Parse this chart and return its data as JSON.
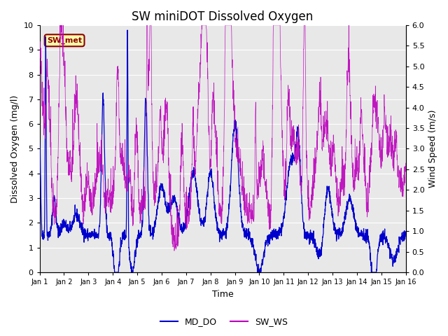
{
  "title": "SW miniDOT Dissolved Oxygen",
  "xlabel": "Time",
  "ylabel_left": "Dissolved Oxygen (mg/l)",
  "ylabel_right": "Wind Speed (m/s)",
  "ylim_left": [
    0.0,
    10.0
  ],
  "ylim_right": [
    0.0,
    6.0
  ],
  "yticks_left": [
    0.0,
    1.0,
    2.0,
    3.0,
    4.0,
    5.0,
    6.0,
    7.0,
    8.0,
    9.0,
    10.0
  ],
  "yticks_right": [
    0.0,
    0.5,
    1.0,
    1.5,
    2.0,
    2.5,
    3.0,
    3.5,
    4.0,
    4.5,
    5.0,
    5.5,
    6.0
  ],
  "xtick_labels": [
    "Jan 1",
    "Jan 2",
    "Jan 3",
    "Jan 4",
    "Jan 5",
    "Jan 6",
    "Jan 7",
    "Jan 8",
    "Jan 9",
    "Jan 10",
    "Jan 11",
    "Jan 12",
    "Jan 13",
    "Jan 14",
    "Jan 15",
    "Jan 16"
  ],
  "num_days": 15,
  "points_per_day": 144,
  "md_do_color": "#0000CC",
  "sw_ws_color": "#BB00BB",
  "legend_md_do": "MD_DO",
  "legend_sw_ws": "SW_WS",
  "annotation_text": "SW_met",
  "annotation_box_facecolor": "#FFFFAA",
  "annotation_box_edgecolor": "#8B0000",
  "annotation_text_color": "#8B0000",
  "background_color": "#E8E8E8",
  "title_fontsize": 12,
  "axis_label_fontsize": 9,
  "tick_label_fontsize": 8,
  "legend_fontsize": 9
}
